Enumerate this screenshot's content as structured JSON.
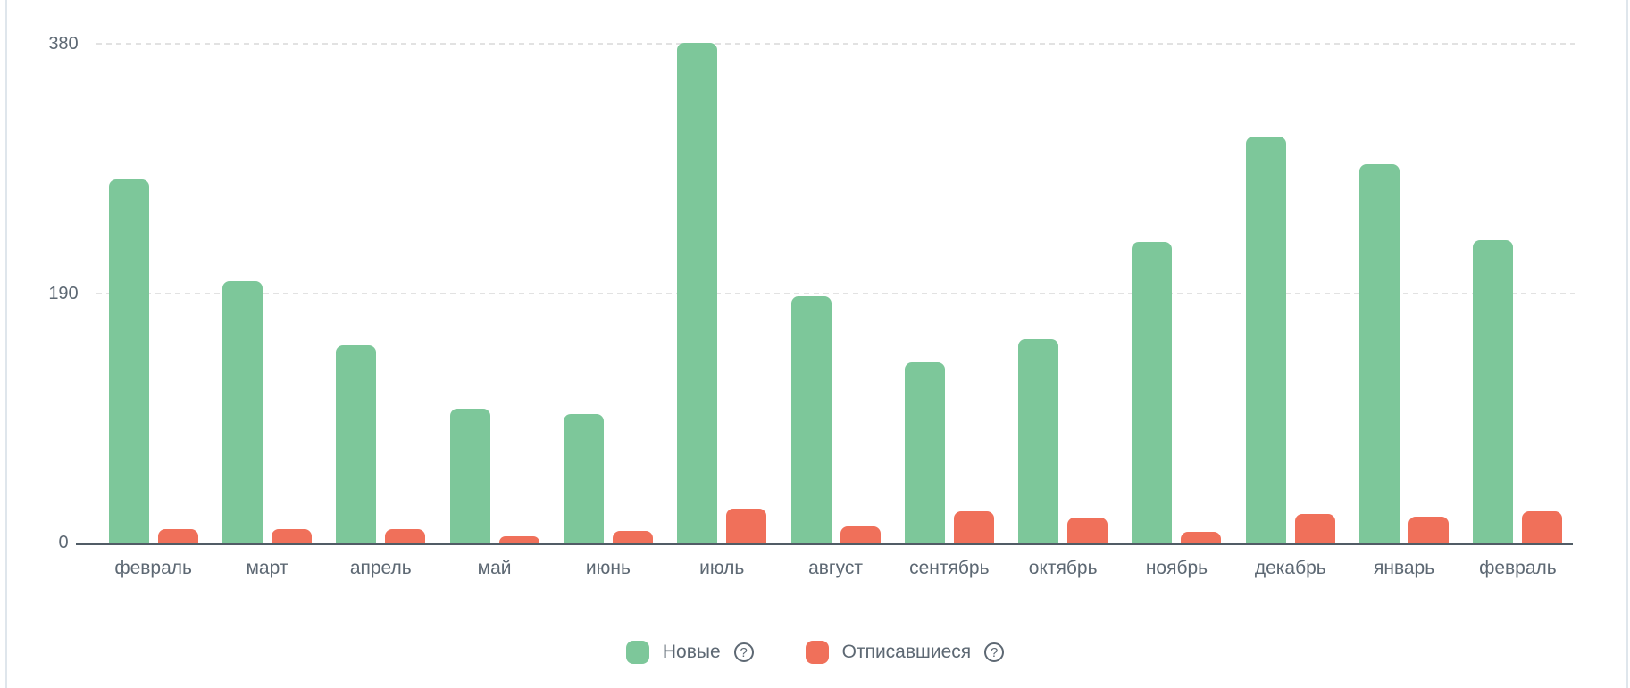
{
  "chart_data": {
    "type": "bar",
    "title": "",
    "xlabel": "",
    "ylabel": "",
    "categories": [
      "февраль",
      "март",
      "апрель",
      "май",
      "июнь",
      "июль",
      "август",
      "сентябрь",
      "октябрь",
      "ноябрь",
      "декабрь",
      "январь",
      "февраль"
    ],
    "series": [
      {
        "name": "Новые",
        "color": "#7dc79a",
        "values": [
          276,
          199,
          150,
          102,
          98,
          380,
          187,
          137,
          155,
          229,
          309,
          288,
          230
        ]
      },
      {
        "name": "Отписавшиеся",
        "color": "#f0705a",
        "values": [
          10,
          10,
          10,
          5,
          9,
          26,
          12,
          24,
          19,
          8,
          22,
          20,
          24
        ]
      }
    ],
    "ylim": [
      0,
      380
    ],
    "yticks": [
      "0",
      "190",
      "380"
    ],
    "grid": "horizontal-dashed",
    "legend_position": "bottom-center"
  },
  "legend": {
    "items": [
      {
        "label": "Новые",
        "color": "#7dc79a",
        "help_icon": "?"
      },
      {
        "label": "Отписавшиеся",
        "color": "#f0705a",
        "help_icon": "?"
      }
    ]
  },
  "colors": {
    "bar_new": "#7dc79a",
    "bar_unsubscribed": "#f0705a",
    "gridline": "#e2e2e2",
    "axis_line": "#515c66",
    "label_text": "#5d6873",
    "card_border": "#dfe6ec",
    "background": "#ffffff"
  }
}
